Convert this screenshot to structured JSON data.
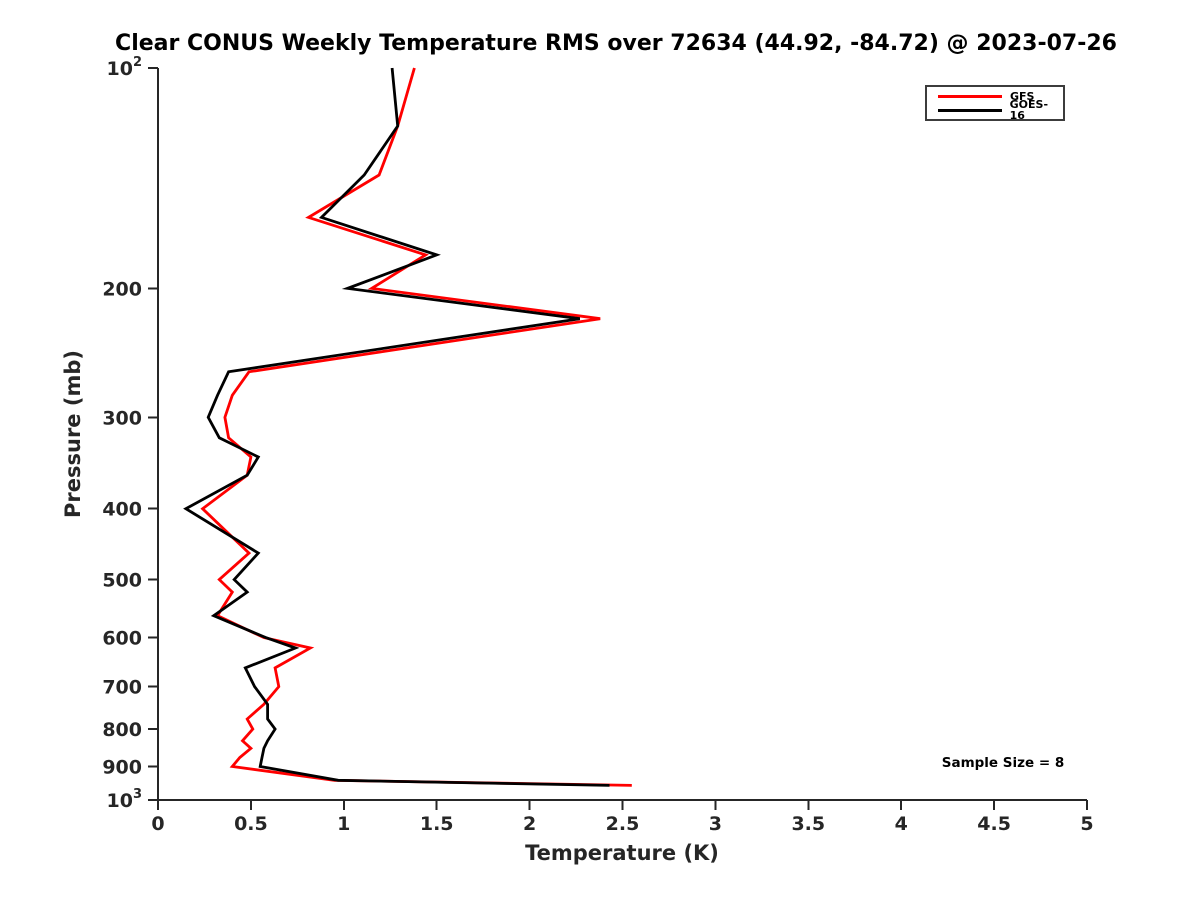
{
  "title": "Clear CONUS Weekly Temperature RMS over 72634 (44.92, -84.72) @ 2023-07-26",
  "annotation": "Sample Size = 8",
  "legend": {
    "entries": [
      {
        "label": "GFS",
        "color": "#ff0000"
      },
      {
        "label": "GOES-16",
        "color": "#000000"
      }
    ]
  },
  "chart_data": {
    "type": "line",
    "title": "Clear CONUS Weekly Temperature RMS over 72634 (44.92, -84.72) @ 2023-07-26",
    "xlabel": "Temperature (K)",
    "ylabel": "Pressure (mb)",
    "xlim": [
      0,
      5
    ],
    "ylim": [
      100,
      1000
    ],
    "x_ticks": [
      0,
      0.5,
      1,
      1.5,
      2,
      2.5,
      3,
      3.5,
      4,
      4.5,
      5
    ],
    "x_tick_labels": [
      "0",
      "0.5",
      "1",
      "1.5",
      "2",
      "2.5",
      "3",
      "3.5",
      "4",
      "4.5",
      "5"
    ],
    "y_ticks": [
      100,
      200,
      300,
      400,
      500,
      600,
      700,
      800,
      900,
      1000
    ],
    "y_scale": "log10-inverted",
    "grid": false,
    "legend_position": "top-right",
    "annotation": "Sample Size = 8",
    "axis_color": "#262626",
    "pressure_levels": [
      100,
      120,
      140,
      160,
      180,
      200,
      220,
      260,
      280,
      300,
      320,
      340,
      360,
      400,
      460,
      500,
      520,
      560,
      600,
      620,
      660,
      700,
      740,
      775,
      800,
      830,
      850,
      875,
      900,
      940,
      955
    ],
    "series": [
      {
        "name": "GFS",
        "color": "#ff0000",
        "values": [
          1.38,
          1.29,
          1.19,
          0.81,
          1.44,
          1.15,
          2.38,
          0.49,
          0.4,
          0.36,
          0.38,
          0.5,
          0.48,
          0.24,
          0.49,
          0.33,
          0.4,
          0.32,
          0.57,
          0.82,
          0.63,
          0.65,
          0.57,
          0.48,
          0.51,
          0.455,
          0.5,
          0.44,
          0.4,
          0.95,
          2.55
        ]
      },
      {
        "name": "GOES-16",
        "color": "#000000",
        "values": [
          1.26,
          1.29,
          1.11,
          0.88,
          1.5,
          1.02,
          2.27,
          0.38,
          0.32,
          0.27,
          0.33,
          0.54,
          0.48,
          0.15,
          0.54,
          0.41,
          0.48,
          0.3,
          0.58,
          0.74,
          0.47,
          0.52,
          0.59,
          0.59,
          0.63,
          0.59,
          0.57,
          0.56,
          0.55,
          0.97,
          2.43
        ]
      }
    ]
  }
}
